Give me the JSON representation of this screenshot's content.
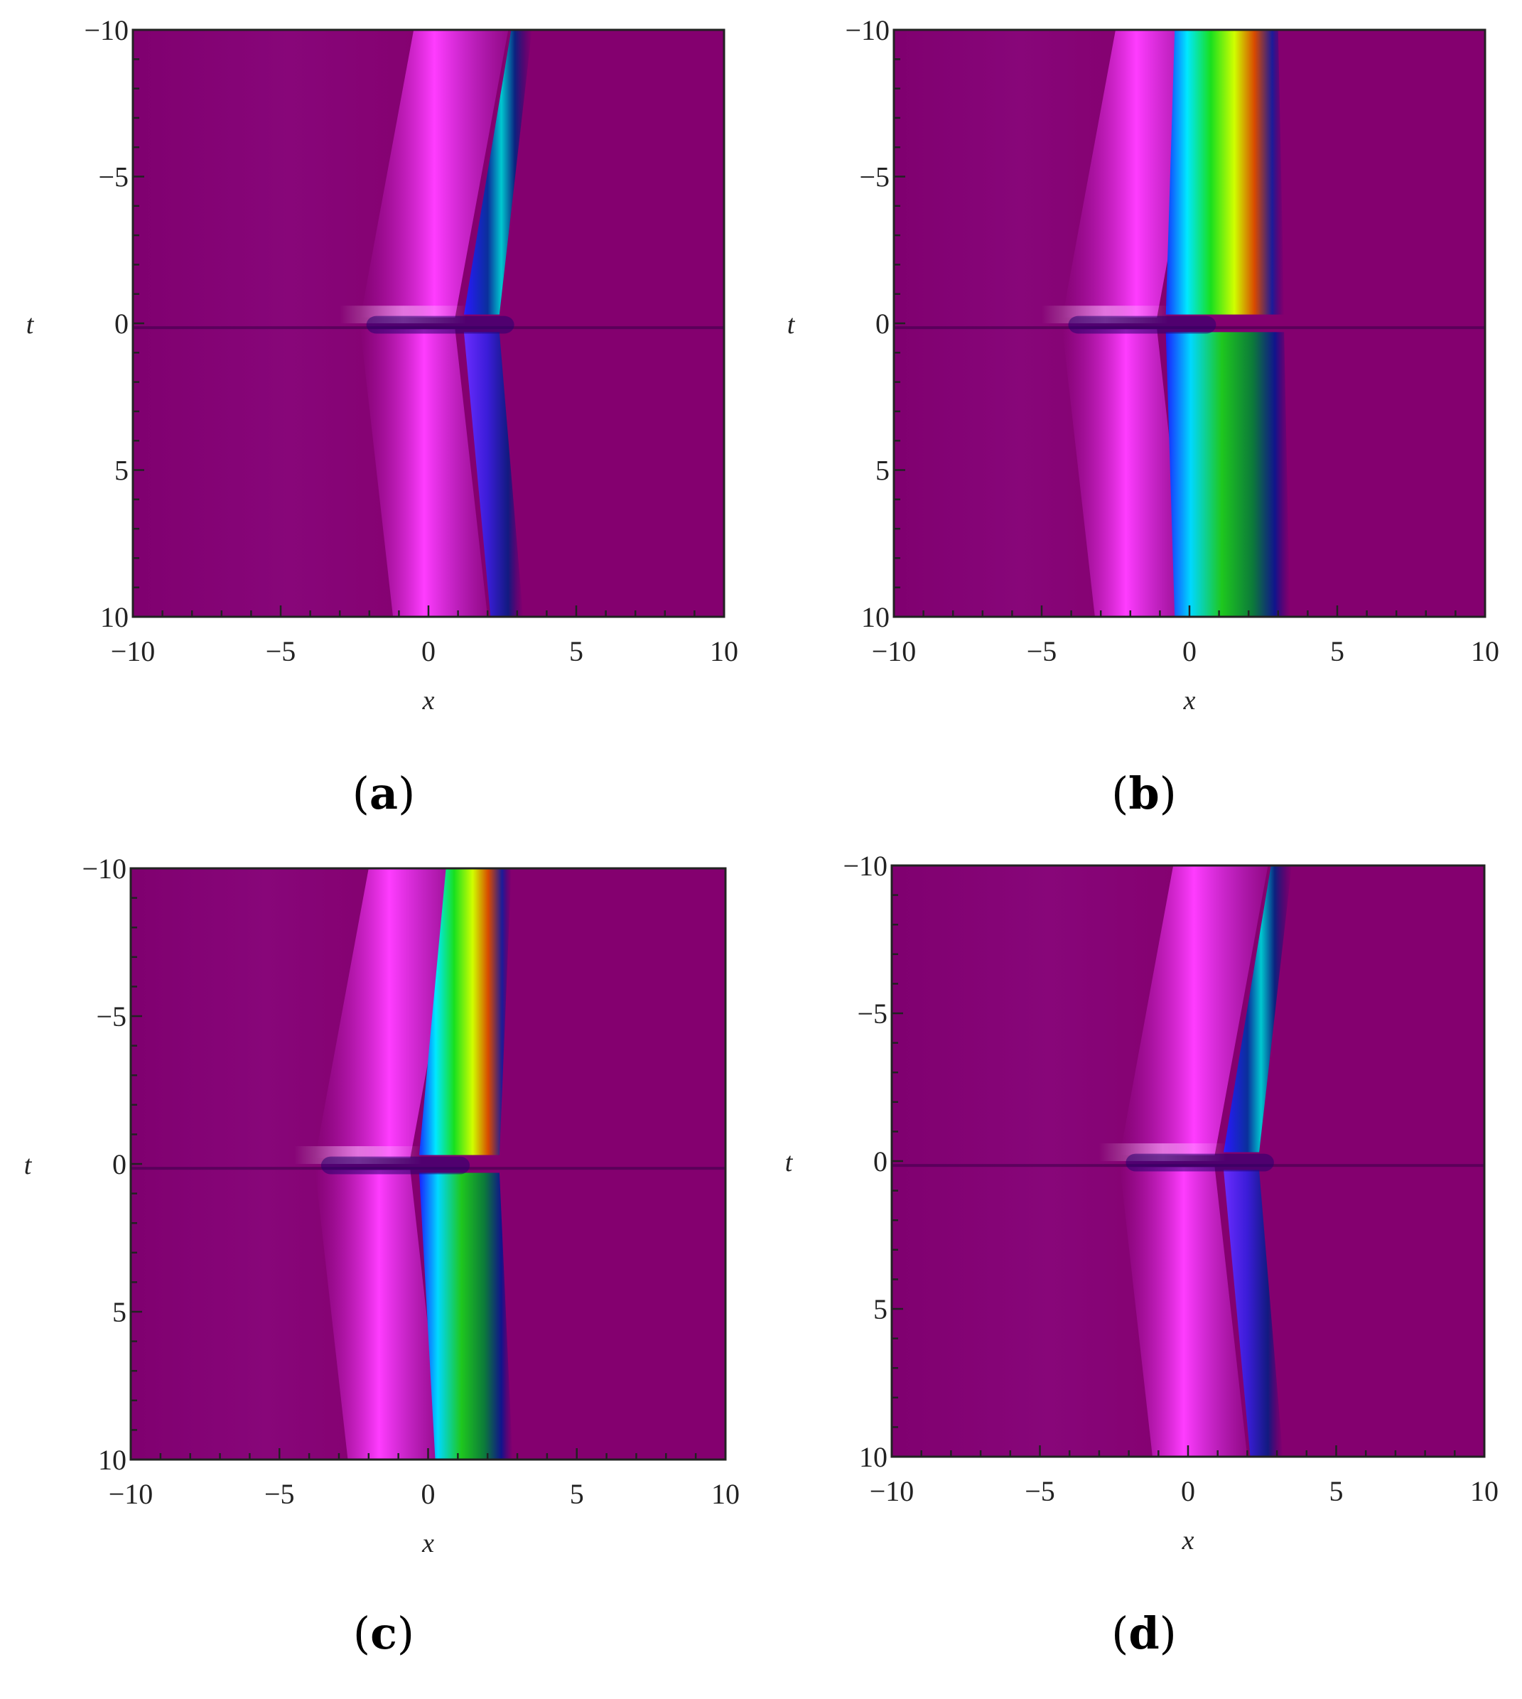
{
  "chart_data": [
    {
      "type": "heatmap",
      "panel": "a",
      "caption": {
        "open": "(",
        "letter": "a",
        "close": ")"
      },
      "xlabel": "x",
      "ylabel": "t",
      "xlim": [
        -10,
        10
      ],
      "ylim": [
        -10,
        10
      ],
      "y_axis_reversed": true,
      "x_ticks": [
        "−10",
        "−5",
        "0",
        "5",
        "10"
      ],
      "y_ticks": [
        "−10",
        "−5",
        "0",
        "5",
        "10"
      ],
      "grid": false,
      "colormap": "rainbow",
      "background_color": "#84006f",
      "features": {
        "magenta_band_x": 0.5,
        "stripe_width": 0.7,
        "top_shift": 1.3,
        "bottom_shift": 1.5,
        "color_strength": 0.35
      }
    },
    {
      "type": "heatmap",
      "panel": "b",
      "caption": {
        "open": "(",
        "letter": "b",
        "close": ")"
      },
      "xlabel": "x",
      "ylabel": "t",
      "xlim": [
        -10,
        10
      ],
      "ylim": [
        -10,
        10
      ],
      "y_axis_reversed": true,
      "x_ticks": [
        "−10",
        "−5",
        "0",
        "5",
        "10"
      ],
      "y_ticks": [
        "−10",
        "−5",
        "0",
        "5",
        "10"
      ],
      "grid": false,
      "colormap": "rainbow",
      "background_color": "#84006f",
      "features": {
        "magenta_band_x": -1.5,
        "stripe_width": 3.5,
        "top_shift": 0.0,
        "bottom_shift": 0.0,
        "color_strength": 1.0
      }
    },
    {
      "type": "heatmap",
      "panel": "c",
      "caption": {
        "open": "(",
        "letter": "c",
        "close": ")"
      },
      "xlabel": "x",
      "ylabel": "t",
      "xlim": [
        -10,
        10
      ],
      "ylim": [
        -10,
        10
      ],
      "y_axis_reversed": true,
      "x_ticks": [
        "−10",
        "−5",
        "0",
        "5",
        "10"
      ],
      "y_ticks": [
        "−10",
        "−5",
        "0",
        "5",
        "10"
      ],
      "grid": false,
      "colormap": "rainbow",
      "background_color": "#84006f",
      "features": {
        "magenta_band_x": -1.0,
        "stripe_width": 2.2,
        "top_shift": 0.6,
        "bottom_shift": 0.6,
        "color_strength": 0.75
      }
    },
    {
      "type": "heatmap",
      "panel": "d",
      "caption": {
        "open": "(",
        "letter": "d",
        "close": ")"
      },
      "xlabel": "x",
      "ylabel": "t",
      "xlim": [
        -10,
        10
      ],
      "ylim": [
        -10,
        10
      ],
      "y_axis_reversed": true,
      "x_ticks": [
        "−10",
        "−5",
        "0",
        "5",
        "10"
      ],
      "y_ticks": [
        "−10",
        "−5",
        "0",
        "5",
        "10"
      ],
      "grid": false,
      "colormap": "rainbow",
      "background_color": "#84006f",
      "features": {
        "magenta_band_x": 0.5,
        "stripe_width": 0.7,
        "top_shift": 1.3,
        "bottom_shift": 1.5,
        "color_strength": 0.3
      }
    }
  ]
}
